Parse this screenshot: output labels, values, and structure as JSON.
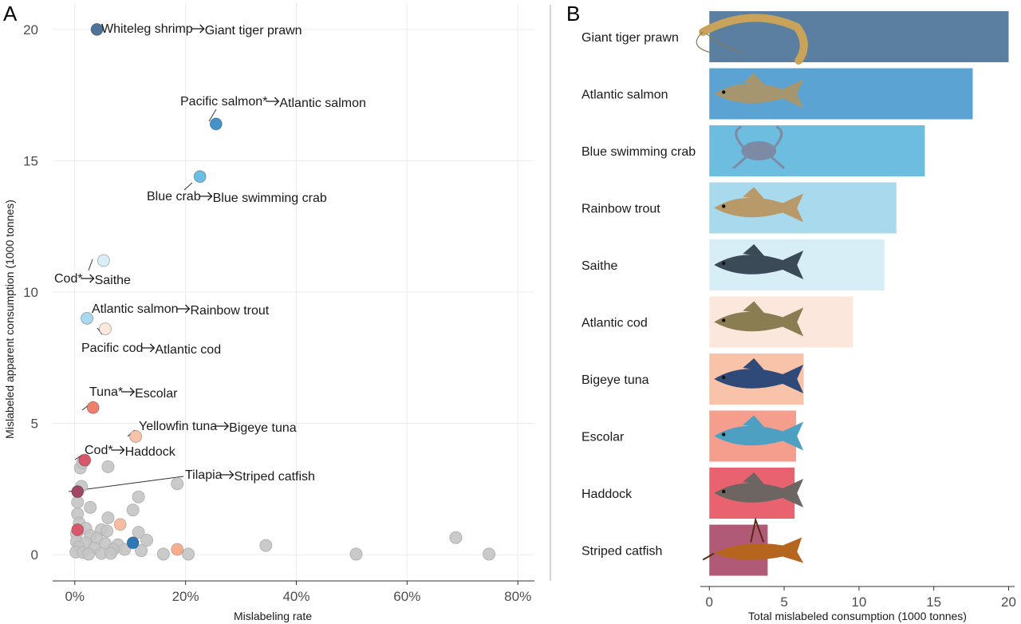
{
  "chart_data": [
    {
      "panel": "A",
      "type": "scatter",
      "xlabel": "Mislabeling rate",
      "ylabel": "Mislabeled apparent consumption (1000 tonnes)",
      "xlim": [
        -0.04,
        0.83
      ],
      "ylim": [
        -1,
        21
      ],
      "x_ticks": [
        0,
        0.2,
        0.4,
        0.6,
        0.8
      ],
      "x_tick_labels": [
        "0%",
        "20%",
        "40%",
        "60%",
        "80%"
      ],
      "y_ticks": [
        0,
        5,
        10,
        15,
        20
      ],
      "y_tick_labels": [
        "0",
        "5",
        "10",
        "15",
        "20"
      ],
      "grid": true,
      "highlighted": [
        {
          "label": "Whiteleg shrimp",
          "target": "Giant tiger prawn",
          "x": 0.04,
          "y": 20.0,
          "color": "#4e7398"
        },
        {
          "label": "Pacific salmon*",
          "target": "Atlantic salmon",
          "x": 0.255,
          "y": 16.4,
          "color": "#4591c9"
        },
        {
          "label": "Blue crab",
          "target": "Blue swimming crab",
          "x": 0.226,
          "y": 14.4,
          "color": "#6bbde2"
        },
        {
          "label": "Cod*",
          "target": "Saithe",
          "x": 0.052,
          "y": 11.2,
          "color": "#d9eef7"
        },
        {
          "label": "Atlantic salmon",
          "target": "Rainbow trout",
          "x": 0.022,
          "y": 9.0,
          "color": "#a9d9ed"
        },
        {
          "label": "Pacific cod",
          "target": "Atlantic cod",
          "x": 0.055,
          "y": 8.6,
          "color": "#fbe7dc"
        },
        {
          "label": "Tuna*",
          "target": "Escolar",
          "x": 0.033,
          "y": 5.6,
          "color": "#ee7f6c"
        },
        {
          "label": "Yellowfin tuna",
          "target": "Bigeye tuna",
          "x": 0.11,
          "y": 4.5,
          "color": "#f8c3a8"
        },
        {
          "label": "Cod*",
          "target": "Haddock",
          "x": 0.018,
          "y": 3.6,
          "color": "#d8576a"
        },
        {
          "label": "Tilapia",
          "target": "Striped catfish",
          "x": 0.005,
          "y": 2.4,
          "color": "#a14766"
        }
      ],
      "background_points": [
        {
          "x": 0.01,
          "y": 3.3
        },
        {
          "x": 0.014,
          "y": 3.5
        },
        {
          "x": 0.06,
          "y": 3.35
        },
        {
          "x": 0.185,
          "y": 2.7
        },
        {
          "x": 0.012,
          "y": 2.6
        },
        {
          "x": 0.115,
          "y": 2.2
        },
        {
          "x": 0.005,
          "y": 2.0
        },
        {
          "x": 0.028,
          "y": 1.8
        },
        {
          "x": 0.105,
          "y": 1.7
        },
        {
          "x": 0.005,
          "y": 1.55
        },
        {
          "x": 0.06,
          "y": 1.4
        },
        {
          "x": 0.008,
          "y": 1.2
        },
        {
          "x": 0.02,
          "y": 1.0
        },
        {
          "x": 0.048,
          "y": 0.95
        },
        {
          "x": 0.058,
          "y": 0.9
        },
        {
          "x": 0.003,
          "y": 0.8
        },
        {
          "x": 0.028,
          "y": 0.72
        },
        {
          "x": 0.115,
          "y": 0.85
        },
        {
          "x": 0.04,
          "y": 0.62
        },
        {
          "x": 0.13,
          "y": 0.55
        },
        {
          "x": 0.003,
          "y": 0.5
        },
        {
          "x": 0.02,
          "y": 0.45
        },
        {
          "x": 0.055,
          "y": 0.42
        },
        {
          "x": 0.078,
          "y": 0.38
        },
        {
          "x": 0.345,
          "y": 0.35
        },
        {
          "x": 0.688,
          "y": 0.65
        },
        {
          "x": 0.007,
          "y": 0.3
        },
        {
          "x": 0.035,
          "y": 0.25
        },
        {
          "x": 0.07,
          "y": 0.2
        },
        {
          "x": 0.09,
          "y": 0.2
        },
        {
          "x": 0.12,
          "y": 0.15
        },
        {
          "x": 0.002,
          "y": 0.1
        },
        {
          "x": 0.015,
          "y": 0.08
        },
        {
          "x": 0.048,
          "y": 0.05
        },
        {
          "x": 0.16,
          "y": 0.02
        },
        {
          "x": 0.205,
          "y": 0.02
        },
        {
          "x": 0.508,
          "y": 0.02
        },
        {
          "x": 0.748,
          "y": 0.02
        },
        {
          "x": 0.025,
          "y": 0.02
        },
        {
          "x": 0.065,
          "y": 0.05
        }
      ],
      "extra_colored_points": [
        {
          "x": 0.105,
          "y": 0.45,
          "color": "#2e78b8"
        },
        {
          "x": 0.185,
          "y": 0.2,
          "color": "#f8ae8c"
        },
        {
          "x": 0.082,
          "y": 1.15,
          "color": "#f8bda0"
        },
        {
          "x": 0.005,
          "y": 0.95,
          "color": "#d8576a"
        }
      ]
    },
    {
      "panel": "B",
      "type": "bar",
      "orientation": "horizontal",
      "xlabel": "Total mislabeled consumption (1000 tonnes)",
      "xlim": [
        -0.6,
        20.4
      ],
      "x_ticks": [
        0,
        5,
        10,
        15,
        20
      ],
      "x_tick_labels": [
        "0",
        "5",
        "10",
        "15",
        "20"
      ],
      "categories": [
        "Giant tiger prawn",
        "Atlantic salmon",
        "Blue swimming crab",
        "Rainbow trout",
        "Saithe",
        "Atlantic cod",
        "Bigeye tuna",
        "Escolar",
        "Haddock",
        "Striped catfish"
      ],
      "values": [
        20.0,
        17.6,
        14.4,
        12.5,
        11.7,
        9.6,
        6.3,
        5.8,
        5.7,
        3.9
      ],
      "colors": [
        "#5b7fa0",
        "#5ba3d2",
        "#6dbde0",
        "#a9d9ec",
        "#d8eef6",
        "#fbe7dc",
        "#f8c3a8",
        "#f59e8d",
        "#e8636f",
        "#b05a78"
      ],
      "icons": [
        "shrimp-icon",
        "salmon-icon",
        "crab-icon",
        "trout-icon",
        "saithe-icon",
        "cod-icon",
        "tuna-icon",
        "escolar-icon",
        "haddock-icon",
        "catfish-icon"
      ]
    }
  ],
  "panels": {
    "A": "A",
    "B": "B"
  }
}
